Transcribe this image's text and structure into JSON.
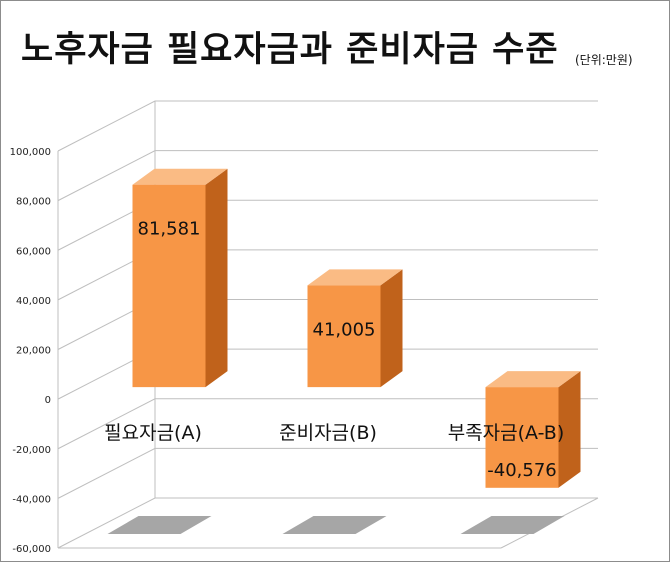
{
  "chart_data": {
    "type": "bar",
    "title": "노후자금 필요자금과 준비자금 수준",
    "unit_label": "(단위:만원)",
    "categories": [
      "필요자금(A)",
      "준비자금(B)",
      "부족자금(A-B)"
    ],
    "values": [
      81581,
      41005,
      -40576
    ],
    "value_labels": [
      "81,581",
      "41,005",
      "-40,576"
    ],
    "ylim": [
      -60000,
      100000
    ],
    "yticks": [
      100000,
      80000,
      60000,
      40000,
      20000,
      0,
      -20000,
      -40000,
      -60000
    ],
    "ytick_labels": [
      "100,000",
      "80,000",
      "60,000",
      "40,000",
      "20,000",
      "0",
      "-20,000",
      "-40,000",
      "-60,000"
    ],
    "grid": true,
    "legend": "none",
    "style": "3d-column",
    "colors": {
      "bar_front": "#f79646",
      "bar_side": "#c0621b",
      "bar_top": "#fabb84",
      "gridline": "#bfbfbf",
      "shadow": "#a6a6a6"
    }
  }
}
